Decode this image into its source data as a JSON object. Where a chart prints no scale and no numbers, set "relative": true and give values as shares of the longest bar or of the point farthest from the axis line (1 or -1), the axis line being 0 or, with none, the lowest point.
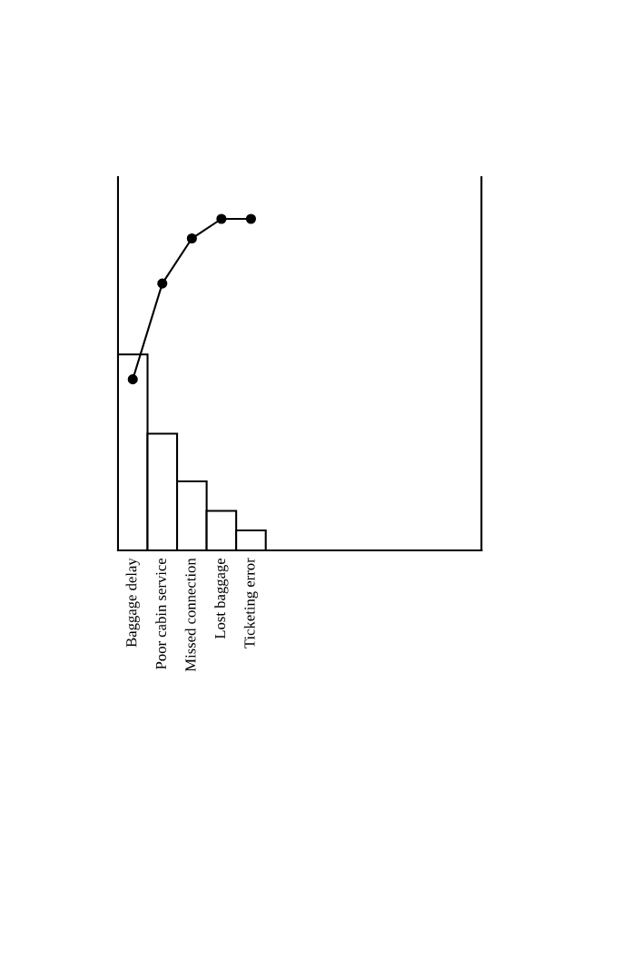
{
  "chart_data": {
    "type": "bar",
    "relative": true,
    "categories": [
      "Baggage delay",
      "Poor cabin service",
      "Missed connection",
      "Lost baggage",
      "Ticketing error"
    ],
    "series": [
      {
        "color": "#ffffff",
        "values": [
          0.591,
          0.352,
          0.208,
          0.119,
          0.06
        ]
      },
      {
        "type": "line",
        "color": "#000000",
        "marker": "circle",
        "line_style": "solid",
        "values": [
          0.516,
          0.805,
          0.941,
          1,
          1
        ]
      }
    ]
  }
}
